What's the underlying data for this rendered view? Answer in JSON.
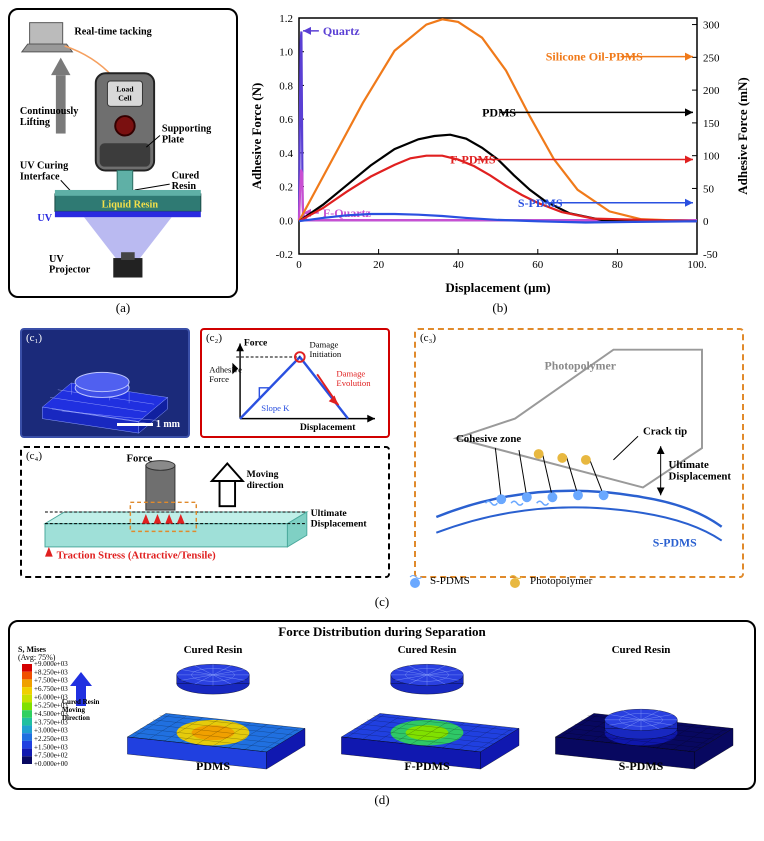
{
  "panel_a": {
    "labels": {
      "tracking": "Real-time tacking",
      "lifting": "Continuously\nLifting",
      "loadcell": "Load\nCell",
      "plate": "Supporting\nPlate",
      "curing_if": "UV Curing\nInterface",
      "cured": "Cured\nResin",
      "liquid": "Liquid Resin",
      "uv": "UV",
      "projector": "UV\nProjector"
    },
    "colors": {
      "device_body": "#6f6f6f",
      "device_dark": "#3c3c3c",
      "arrow": "#7a7a7a",
      "resin_liquid": "#2f7a73",
      "resin_cured": "#5fb0a6",
      "uv_beam": "#3a3ad6",
      "uv_text": "#2a2ae0",
      "liquid_text": "#f3e04a",
      "projector": "#222222",
      "laptop": "#bbbbbb"
    }
  },
  "panel_b": {
    "type": "line",
    "title": "",
    "xlabel": "Displacement (μm)",
    "ylabel_left": "Adhesive Force (N)",
    "ylabel_right": "Adhesive Force (mN)",
    "xlim": [
      0,
      100
    ],
    "xtick_step": 20,
    "ylim_left": [
      -0.2,
      1.2
    ],
    "ytick_left_step": 0.2,
    "ylim_right": [
      -50,
      310
    ],
    "ytick_right_step": 50,
    "axis_color": "#000000",
    "background_color": "#ffffff",
    "label_fontsize": 13,
    "tick_fontsize": 11,
    "series_fontsize": 12,
    "line_width": 2.2,
    "series": [
      {
        "name": "Quartz",
        "color": "#5a3fd4",
        "right_axis": false,
        "label_xy": [
          6,
          1.1
        ],
        "arrow_to_left": true,
        "points": [
          [
            0,
            0
          ],
          [
            0.4,
            1.05
          ],
          [
            0.6,
            1.12
          ],
          [
            0.9,
            0.1
          ],
          [
            1.2,
            0.0
          ],
          [
            4,
            0.0
          ],
          [
            100,
            0.0
          ]
        ]
      },
      {
        "name": "F-Quartz",
        "color": "#c94fd1",
        "right_axis": false,
        "label_xy": [
          6,
          0.02
        ],
        "arrow_to_left": true,
        "points": [
          [
            0,
            0
          ],
          [
            0.5,
            0.3
          ],
          [
            0.8,
            0.28
          ],
          [
            1.0,
            0.04
          ],
          [
            2,
            0.0
          ],
          [
            100,
            0.0
          ]
        ]
      },
      {
        "name": "Silicone Oil-PDMS",
        "color": "#f07a1a",
        "right_axis": true,
        "label_xy": [
          62,
          245
        ],
        "arrow_to_right": true,
        "points": [
          [
            0,
            0
          ],
          [
            8,
            90
          ],
          [
            16,
            180
          ],
          [
            24,
            260
          ],
          [
            32,
            300
          ],
          [
            36,
            308
          ],
          [
            40,
            304
          ],
          [
            46,
            280
          ],
          [
            52,
            230
          ],
          [
            58,
            160
          ],
          [
            64,
            95
          ],
          [
            70,
            48
          ],
          [
            78,
            15
          ],
          [
            86,
            3
          ],
          [
            100,
            0
          ]
        ]
      },
      {
        "name": "PDMS",
        "color": "#000000",
        "right_axis": true,
        "label_xy": [
          46,
          160
        ],
        "arrow_to_right": true,
        "points": [
          [
            0,
            0
          ],
          [
            6,
            25
          ],
          [
            12,
            55
          ],
          [
            18,
            85
          ],
          [
            24,
            110
          ],
          [
            30,
            125
          ],
          [
            34,
            130
          ],
          [
            38,
            132
          ],
          [
            42,
            126
          ],
          [
            46,
            112
          ],
          [
            50,
            94
          ],
          [
            54,
            70
          ],
          [
            58,
            48
          ],
          [
            62,
            30
          ],
          [
            68,
            12
          ],
          [
            76,
            2
          ],
          [
            100,
            0
          ]
        ]
      },
      {
        "name": "F-PDMS",
        "color": "#e02020",
        "right_axis": true,
        "label_xy": [
          38,
          88
        ],
        "arrow_to_right": true,
        "points": [
          [
            0,
            0
          ],
          [
            6,
            20
          ],
          [
            12,
            45
          ],
          [
            18,
            68
          ],
          [
            24,
            86
          ],
          [
            28,
            96
          ],
          [
            32,
            100
          ],
          [
            36,
            100
          ],
          [
            40,
            94
          ],
          [
            44,
            84
          ],
          [
            48,
            70
          ],
          [
            52,
            54
          ],
          [
            56,
            40
          ],
          [
            60,
            28
          ],
          [
            66,
            14
          ],
          [
            74,
            4
          ],
          [
            100,
            0
          ]
        ]
      },
      {
        "name": "S-PDMS",
        "color": "#2a50e0",
        "right_axis": true,
        "label_xy": [
          55,
          22
        ],
        "arrow_to_right": true,
        "points": [
          [
            0,
            0
          ],
          [
            6,
            5
          ],
          [
            12,
            9
          ],
          [
            18,
            11
          ],
          [
            24,
            11
          ],
          [
            30,
            10
          ],
          [
            36,
            8
          ],
          [
            42,
            5
          ],
          [
            50,
            2
          ],
          [
            60,
            0
          ],
          [
            72,
            -2
          ],
          [
            84,
            -1
          ],
          [
            100,
            0
          ]
        ]
      }
    ]
  },
  "panel_c": {
    "c1": {
      "tag": "(c₁)",
      "scale_label": "1 mm",
      "mesh_color": "#2030e0",
      "cyl_color": "#4050e8",
      "bg": "#1b2a7a"
    },
    "c2": {
      "tag": "(c₂)",
      "labels": {
        "y": "Force",
        "x": "Displacement",
        "adh": "Adhesive\nForce",
        "slope": "Slope K",
        "init": "Damage\nInitiation",
        "evo": "Damage\nEvolution"
      },
      "line_color": "#2a50e0",
      "evo_color": "#e02020",
      "circle_color": "#e02020"
    },
    "c3": {
      "tag": "(c₃)",
      "labels": {
        "poly": "Photopolymer",
        "coh": "Cohesive zone",
        "tip": "Crack tip",
        "ult": "Ultimate\nDisplacement",
        "spdms": "S-PDMS"
      },
      "poly_color": "#9a9a9a",
      "spdms_line": "#2a60d0",
      "mol_spdms": "#6aa8ff",
      "mol_poly": "#e8b840"
    },
    "c4": {
      "tag": "(c₄)",
      "labels": {
        "force": "Force",
        "move": "Moving\ndirection",
        "ult": "Ultimate\nDisplacement",
        "traction": "Traction Stress (Attractive/Tensile)"
      },
      "plate_color": "#9fe0d8",
      "cyl_color": "#6f6f6f",
      "arrow_color": "#000",
      "traction_color": "#e02020"
    },
    "legend": {
      "spdms": "S-PDMS",
      "poly": "Photopolymer"
    }
  },
  "panel_d": {
    "title": "Force Distribution during Separation",
    "arrow_label": "Cured Resin\nMoving\nDirection",
    "top_label": "Cured Resin",
    "samples": [
      "PDMS",
      "F-PDMS",
      "S-PDMS"
    ],
    "colorbar": {
      "title": "S, Mises\n(Avg: 75%)",
      "min": 0.0,
      "max": 9000,
      "ticks": [
        "+9.000e+03",
        "+8.250e+03",
        "+7.500e+03",
        "+6.750e+03",
        "+6.000e+03",
        "+5.250e+03",
        "+4.500e+03",
        "+3.750e+03",
        "+3.000e+03",
        "+2.250e+03",
        "+1.500e+03",
        "+7.500e+02",
        "+0.000e+00"
      ],
      "colors": [
        "#d40000",
        "#f05000",
        "#f0a000",
        "#f0d000",
        "#c8e000",
        "#80e000",
        "#30d060",
        "#20c0a0",
        "#20a0d0",
        "#2070e0",
        "#2040e0",
        "#1018b0",
        "#080860"
      ]
    },
    "stress_level": {
      "PDMS": 0.85,
      "F-PDMS": 0.55,
      "S-PDMS": 0.1
    },
    "separated": {
      "PDMS": true,
      "F-PDMS": true,
      "S-PDMS": false
    }
  },
  "sub_labels": {
    "a": "(a)",
    "b": "(b)",
    "c": "(c)",
    "d": "(d)"
  }
}
